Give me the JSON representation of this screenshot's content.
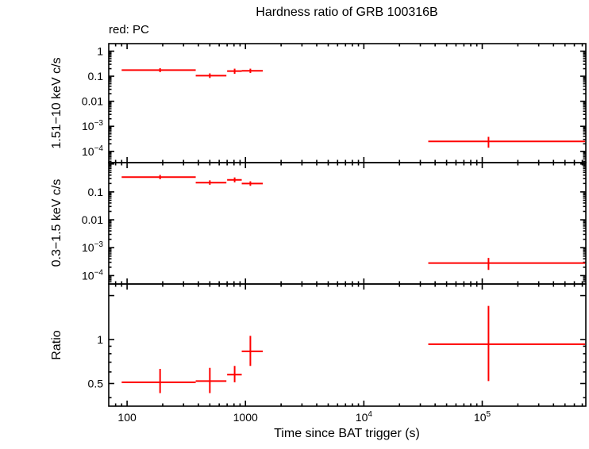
{
  "chart_data": {
    "type": "scatter",
    "subtype": "errorbar-cross",
    "title": "Hardness ratio of GRB 100316B",
    "annotation": "red: PC",
    "xlabel": "Time since BAT trigger (s)",
    "series_name": "PC",
    "color": "#ff0000",
    "x_scale": "log",
    "x_range": [
      70,
      750000
    ],
    "x_tick_labels": [
      {
        "v": 100,
        "text": "100"
      },
      {
        "v": 1000,
        "text": "1000"
      },
      {
        "v": 10000,
        "text": "10",
        "exp": "4"
      },
      {
        "v": 100000,
        "text": "10",
        "exp": "5"
      }
    ],
    "panels": [
      {
        "ylabel": "1.51−10 keV c/s",
        "y_scale": "log",
        "y_range": [
          3.55e-05,
          2.0
        ],
        "y_tick_labels": [
          {
            "v": 1,
            "text": "1"
          },
          {
            "v": 0.1,
            "text": "0.1"
          },
          {
            "v": 0.01,
            "text": "0.01"
          },
          {
            "v": 0.001,
            "text": "10",
            "exp": "−3"
          },
          {
            "v": 0.0001,
            "text": "10",
            "exp": "−4"
          }
        ],
        "points": [
          {
            "x": 190,
            "xlo": 90,
            "xhi": 380,
            "y": 0.175,
            "ylo": 0.145,
            "yhi": 0.21
          },
          {
            "x": 500,
            "xlo": 380,
            "xhi": 690,
            "y": 0.105,
            "ylo": 0.085,
            "yhi": 0.13
          },
          {
            "x": 810,
            "xlo": 700,
            "xhi": 930,
            "y": 0.16,
            "ylo": 0.125,
            "yhi": 0.2
          },
          {
            "x": 1100,
            "xlo": 930,
            "xhi": 1400,
            "y": 0.165,
            "ylo": 0.135,
            "yhi": 0.2
          },
          {
            "x": 113000,
            "xlo": 35000,
            "xhi": 740000,
            "y": 0.00025,
            "ylo": 0.00014,
            "yhi": 0.00038
          }
        ]
      },
      {
        "ylabel": "0.3−1.5 keV c/s",
        "y_scale": "log",
        "y_range": [
          5e-05,
          1.12
        ],
        "y_tick_labels": [
          {
            "v": 0.1,
            "text": "0.1"
          },
          {
            "v": 0.01,
            "text": "0.01"
          },
          {
            "v": 0.001,
            "text": "10",
            "exp": "−3"
          },
          {
            "v": 0.0001,
            "text": "10",
            "exp": "−4"
          }
        ],
        "points": [
          {
            "x": 190,
            "xlo": 90,
            "xhi": 380,
            "y": 0.34,
            "ylo": 0.285,
            "yhi": 0.405
          },
          {
            "x": 500,
            "xlo": 380,
            "xhi": 690,
            "y": 0.215,
            "ylo": 0.18,
            "yhi": 0.26
          },
          {
            "x": 810,
            "xlo": 700,
            "xhi": 930,
            "y": 0.27,
            "ylo": 0.22,
            "yhi": 0.33
          },
          {
            "x": 1100,
            "xlo": 930,
            "xhi": 1400,
            "y": 0.2,
            "ylo": 0.165,
            "yhi": 0.24
          },
          {
            "x": 113000,
            "xlo": 35000,
            "xhi": 740000,
            "y": 0.00028,
            "ylo": 0.00016,
            "yhi": 0.00043
          }
        ]
      },
      {
        "ylabel": "Ratio",
        "y_scale": "log",
        "y_range": [
          0.35,
          2.4
        ],
        "ticks_major": [
          0.5,
          1,
          2
        ],
        "ticks_minor": [
          0.4,
          0.6,
          0.7,
          0.8,
          0.9
        ],
        "y_tick_labels": [
          {
            "v": 1,
            "text": "1"
          },
          {
            "v": 0.5,
            "text": "0.5"
          }
        ],
        "points": [
          {
            "x": 190,
            "xlo": 90,
            "xhi": 380,
            "y": 0.51,
            "ylo": 0.43,
            "yhi": 0.63
          },
          {
            "x": 500,
            "xlo": 380,
            "xhi": 690,
            "y": 0.52,
            "ylo": 0.43,
            "yhi": 0.64
          },
          {
            "x": 810,
            "xlo": 700,
            "xhi": 930,
            "y": 0.575,
            "ylo": 0.51,
            "yhi": 0.66
          },
          {
            "x": 1100,
            "xlo": 930,
            "xhi": 1400,
            "y": 0.83,
            "ylo": 0.66,
            "yhi": 1.06
          },
          {
            "x": 113000,
            "xlo": 35000,
            "xhi": 740000,
            "y": 0.93,
            "ylo": 0.52,
            "yhi": 1.7
          }
        ]
      }
    ]
  }
}
